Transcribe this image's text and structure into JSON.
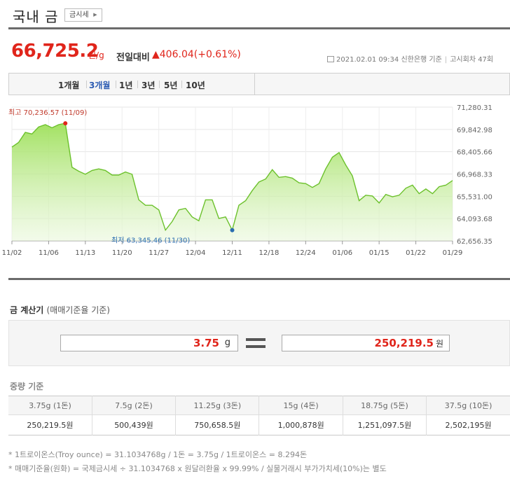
{
  "header": {
    "title": "국내 금",
    "market_button": "금시세"
  },
  "price": {
    "value": "66,725.2",
    "unit": "원/g",
    "change_label": "전일대비",
    "change_value": "▲406.04(+0.61%)",
    "date": "2021.02.01 09:34",
    "source": "신한은행 기준",
    "round": "고시회차 47회"
  },
  "periods": [
    {
      "label": "1개월",
      "selected": false
    },
    {
      "label": "3개월",
      "selected": true
    },
    {
      "label": "1년",
      "selected": false
    },
    {
      "label": "3년",
      "selected": false
    },
    {
      "label": "5년",
      "selected": false
    },
    {
      "label": "10년",
      "selected": false
    }
  ],
  "chart_data": {
    "type": "area",
    "title": "",
    "xlabel": "",
    "ylabel": "",
    "ylim": [
      62656.35,
      71280.31
    ],
    "yticks": [
      "71,280.31",
      "69,842.98",
      "68,405.66",
      "66,968.33",
      "65,531.00",
      "64,093.68",
      "62,656.35"
    ],
    "xticks": [
      "11/02",
      "11/06",
      "11/13",
      "11/20",
      "11/27",
      "12/04",
      "12/11",
      "12/18",
      "12/24",
      "01/06",
      "01/15",
      "01/22",
      "01/29"
    ],
    "max_label": "최고 70,236.57 (11/09)",
    "min_label": "최저 63,345.46 (11/30)",
    "max_index": 8,
    "min_index": 33,
    "series": [
      {
        "values": [
          68700,
          69000,
          69650,
          69550,
          70000,
          70150,
          69950,
          70150,
          70236.57,
          67400,
          67150,
          66950,
          67200,
          67300,
          67200,
          66900,
          66900,
          67100,
          66950,
          65300,
          64950,
          64950,
          64650,
          63345.46,
          63900,
          64650,
          64750,
          64200,
          63950,
          65300,
          65300,
          64100,
          64200,
          63345.46,
          64950,
          65250,
          65900,
          66450,
          66650,
          67250,
          66750,
          66800,
          66700,
          66400,
          66350,
          66100,
          66350,
          67300,
          68050,
          68350,
          67550,
          66850,
          65250,
          65600,
          65550,
          65100,
          65650,
          65500,
          65600,
          66050,
          66250,
          65700,
          66000,
          65700,
          66150,
          66250,
          66550
        ]
      }
    ]
  },
  "calculator": {
    "title": "금 계산기",
    "subtitle": "(매매기준율 기준)",
    "input_value": "3.75",
    "input_unit": "g",
    "output_value": "250,219.5",
    "output_unit": "원"
  },
  "weight_table": {
    "title": "중량 기준",
    "headers": [
      "3.75g (1돈)",
      "7.5g (2돈)",
      "11.25g (3돈)",
      "15g (4돈)",
      "18.75g (5돈)",
      "37.5g (10돈)"
    ],
    "values": [
      "250,219.5원",
      "500,439원",
      "750,658.5원",
      "1,000,878원",
      "1,251,097.5원",
      "2,502,195원"
    ]
  },
  "notes": [
    "* 1트로이온스(Troy ounce) = 31.1034768g / 1돈 = 3.75g / 1트로이온스 = 8.294돈",
    "* 매매기준율(원화) = 국제금시세 ÷ 31.1034768 x 원달러환율 x 99.99% / 실물거래시 부가가치세(10%)는 별도"
  ],
  "colors": {
    "accent_red": "#e0251b",
    "line_green": "#7cc93a",
    "selected_tab": "#2e5db3"
  }
}
